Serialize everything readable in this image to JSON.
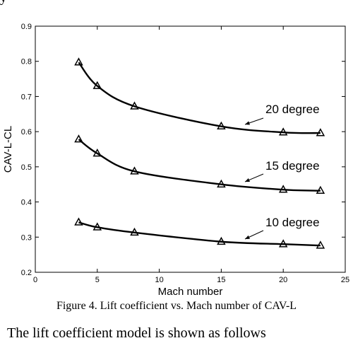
{
  "page": {
    "top_fragment": "y        ·      ·",
    "caption": "Figure 4.  Lift coefficient vs. Mach number of CAV-L",
    "bottom_fragment": "The lift coefficient model is shown as follows"
  },
  "chart_data": {
    "type": "line",
    "title": "",
    "xlabel": "Mach number",
    "ylabel": "CAV-L-CL",
    "xlim": [
      0,
      25
    ],
    "ylim": [
      0.2,
      0.9
    ],
    "x_ticks": [
      "0",
      "5",
      "10",
      "15",
      "20",
      "25"
    ],
    "y_ticks": [
      "0.2",
      "0.3",
      "0.4",
      "0.5",
      "0.6",
      "0.7",
      "0.8",
      "0.9"
    ],
    "grid": false,
    "marker": "triangle",
    "line_color": "#000000",
    "series": [
      {
        "name": "20 degree",
        "x": [
          3.5,
          5,
          8,
          15,
          20,
          23
        ],
        "y": [
          0.797,
          0.73,
          0.672,
          0.615,
          0.598,
          0.596
        ]
      },
      {
        "name": "15 degree",
        "x": [
          3.5,
          5,
          8,
          15,
          20,
          23
        ],
        "y": [
          0.578,
          0.538,
          0.487,
          0.45,
          0.435,
          0.432
        ]
      },
      {
        "name": "10 degree",
        "x": [
          3.5,
          5,
          8,
          15,
          20,
          23
        ],
        "y": [
          0.342,
          0.328,
          0.313,
          0.287,
          0.28,
          0.276
        ]
      }
    ]
  }
}
